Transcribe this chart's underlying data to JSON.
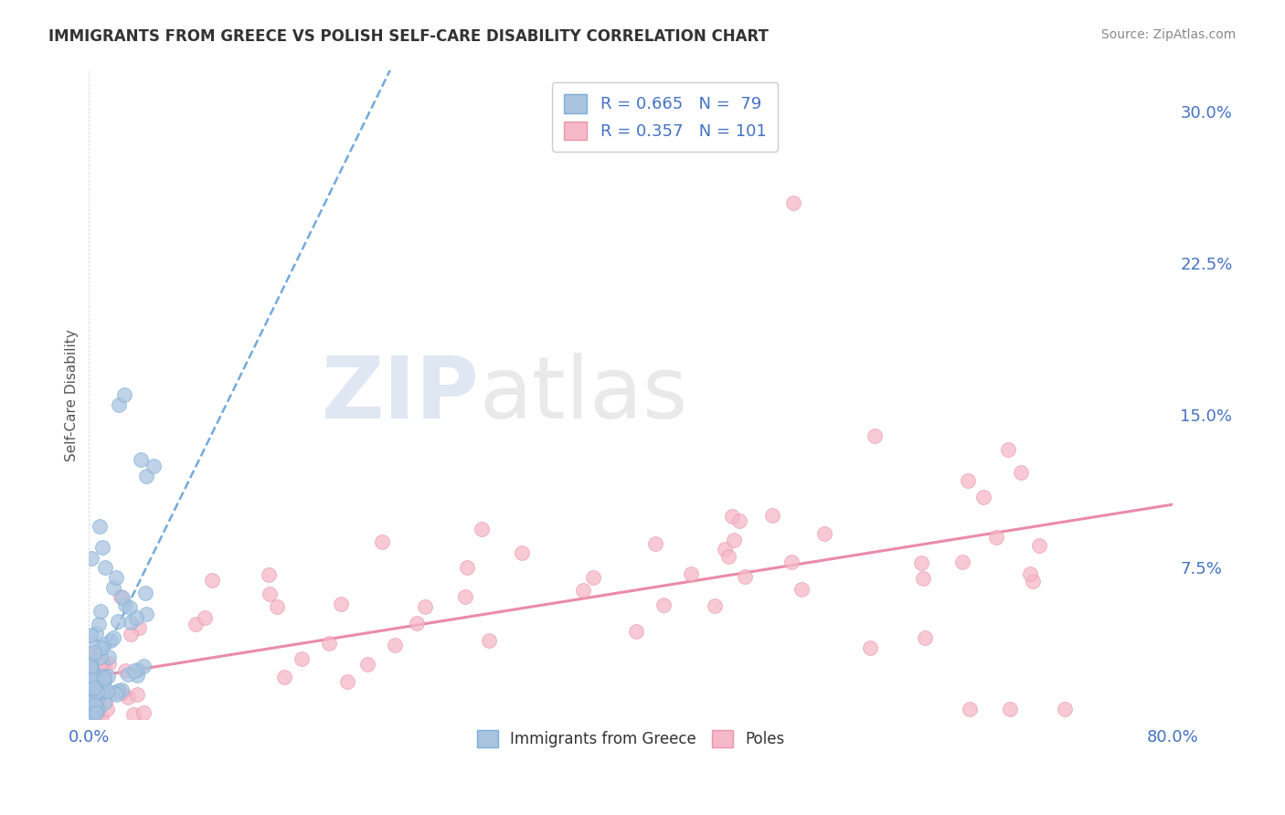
{
  "title": "IMMIGRANTS FROM GREECE VS POLISH SELF-CARE DISABILITY CORRELATION CHART",
  "source": "Source: ZipAtlas.com",
  "ylabel": "Self-Care Disability",
  "xlim": [
    0.0,
    0.8
  ],
  "ylim": [
    0.0,
    0.32
  ],
  "yticks": [
    0.0,
    0.075,
    0.15,
    0.225,
    0.3
  ],
  "ytick_labels": [
    "",
    "7.5%",
    "15.0%",
    "22.5%",
    "30.0%"
  ],
  "series1_color": "#aac4e0",
  "series1_edge": "#7aafd4",
  "series2_color": "#f5b8c8",
  "series2_edge": "#e896ae",
  "trendline1_color": "#5b9bd5",
  "trendline2_color": "#e87ea0",
  "legend1_color": "#aac4e0",
  "legend2_color": "#f5b8c8",
  "watermark_zip_color": "#c5d5e8",
  "watermark_atlas_color": "#c8c8c8",
  "title_color": "#333333",
  "source_color": "#888888",
  "tick_color": "#4472c4",
  "ylabel_color": "#555555",
  "grid_color": "#cccccc"
}
